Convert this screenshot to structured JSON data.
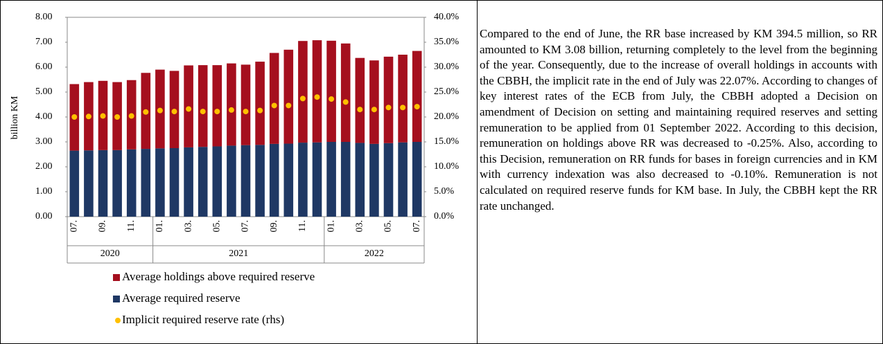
{
  "chart_data": {
    "type": "bar",
    "y_label": "billion KM",
    "categories": [
      "07.",
      null,
      "09.",
      null,
      "11.",
      null,
      "01.",
      null,
      "03.",
      null,
      "05.",
      null,
      "07.",
      null,
      "09.",
      null,
      "11.",
      null,
      "01.",
      null,
      "03.",
      null,
      "05.",
      null,
      "07."
    ],
    "groups": [
      "2020",
      "2021",
      "2022"
    ],
    "series": [
      {
        "name": "Average required reserve",
        "color": "#1f3864",
        "values": [
          2.65,
          2.66,
          2.67,
          2.67,
          2.7,
          2.72,
          2.74,
          2.75,
          2.78,
          2.8,
          2.82,
          2.85,
          2.87,
          2.88,
          2.92,
          2.93,
          2.97,
          2.98,
          3.0,
          3.0,
          2.96,
          2.92,
          2.95,
          2.98,
          3.0
        ]
      },
      {
        "name": "Average holdings above required reserve",
        "color": "#a50f1e",
        "values": [
          2.67,
          2.74,
          2.78,
          2.73,
          2.78,
          3.05,
          3.16,
          3.1,
          3.29,
          3.28,
          3.26,
          3.3,
          3.23,
          3.34,
          3.65,
          3.77,
          4.08,
          4.1,
          4.06,
          3.95,
          3.41,
          3.35,
          3.47,
          3.52,
          3.65
        ]
      },
      {
        "name": "Implicit  required reserve rate (rhs)",
        "color": "#ffc000",
        "axis": "y2",
        "values": [
          20.0,
          20.1,
          20.2,
          20.0,
          20.2,
          21.0,
          21.3,
          21.1,
          21.6,
          21.1,
          21.1,
          21.4,
          21.1,
          21.3,
          22.3,
          22.3,
          23.7,
          24.0,
          23.6,
          23.0,
          21.5,
          21.5,
          21.9,
          21.9,
          22.07
        ]
      }
    ],
    "legend_order": [
      1,
      0,
      2
    ],
    "ylim": [
      0,
      8
    ],
    "yticks": [
      {
        "value": 0,
        "label": "0.00"
      },
      {
        "value": 1,
        "label": "1.00"
      },
      {
        "value": 2,
        "label": "2.00"
      },
      {
        "value": 3,
        "label": "3.00"
      },
      {
        "value": 4,
        "label": "4.00"
      },
      {
        "value": 5,
        "label": "5.00"
      },
      {
        "value": 6,
        "label": "6.00"
      },
      {
        "value": 7,
        "label": "7.00"
      },
      {
        "value": 8,
        "label": "8.00"
      }
    ],
    "y2lim": [
      0,
      40
    ],
    "y2ticks": [
      {
        "value": 0,
        "label": "0.0%"
      },
      {
        "value": 5,
        "label": "5.0%"
      },
      {
        "value": 10,
        "label": "10.0%"
      },
      {
        "value": 15,
        "label": "15.0%"
      },
      {
        "value": 20,
        "label": "20.0%"
      },
      {
        "value": 25,
        "label": "25.0%"
      },
      {
        "value": 30,
        "label": "30.0%"
      },
      {
        "value": 35,
        "label": "35.0%"
      },
      {
        "value": 40,
        "label": "40.0%"
      }
    ]
  },
  "text": {
    "paragraph": "Compared to the end of June, the RR base increased by KM 394.5 million, so RR amounted to KM 3.08 billion, returning completely to the level from the beginning of the year. Consequently, due to the increase of overall holdings in accounts with the CBBH, the implicit rate in the end of July was 22.07%. According to changes of key interest rates of the ECB from July, the CBBH adopted a Decision on amendment of Decision on setting and maintaining required reserves and setting remuneration to be applied from 01 September 2022. According to this decision, remuneration on holdings above RR was decreased to -0.25%. Also, according to this Decision, remuneration on RR funds for bases in foreign currencies and in KM with currency indexation was also decreased to -0.10%. Remuneration is not calculated on required reserve funds for KM base. In July, the CBBH kept the RR rate unchanged."
  }
}
